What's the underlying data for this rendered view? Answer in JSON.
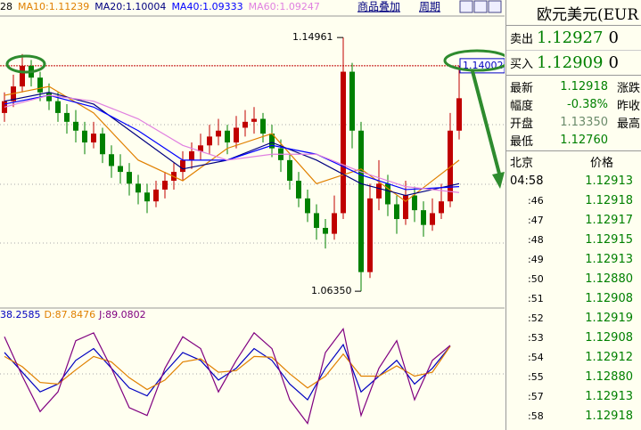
{
  "toolbar": {
    "buttons": [
      "商品叠加",
      "周期"
    ]
  },
  "chart_data": {
    "type": "candlestick",
    "legend": [
      {
        "text": "28",
        "color": "#000000"
      },
      {
        "text": "MA10:1.11239",
        "color": "#e08000"
      },
      {
        "text": "MA20:1.10004",
        "color": "#000080"
      },
      {
        "text": "MA40:1.09333",
        "color": "#0000ff"
      },
      {
        "text": "MA60:1.09247",
        "color": "#e080e0"
      }
    ],
    "ylim": [
      1.0581,
      1.1563
    ],
    "up_color": "#c00000",
    "down_color": "#008000",
    "candles": [
      [
        1.124,
        1.131,
        1.121,
        1.128
      ],
      [
        1.128,
        1.137,
        1.126,
        1.133
      ],
      [
        1.133,
        1.144,
        1.131,
        1.14
      ],
      [
        1.14,
        1.142,
        1.133,
        1.136
      ],
      [
        1.136,
        1.138,
        1.128,
        1.131
      ],
      [
        1.131,
        1.134,
        1.125,
        1.128
      ],
      [
        1.128,
        1.131,
        1.121,
        1.124
      ],
      [
        1.124,
        1.127,
        1.117,
        1.121
      ],
      [
        1.121,
        1.125,
        1.114,
        1.118
      ],
      [
        1.118,
        1.121,
        1.11,
        1.114
      ],
      [
        1.114,
        1.121,
        1.112,
        1.117
      ],
      [
        1.117,
        1.119,
        1.107,
        1.11
      ],
      [
        1.11,
        1.113,
        1.102,
        1.106
      ],
      [
        1.106,
        1.11,
        1.1,
        1.104
      ],
      [
        1.104,
        1.107,
        1.096,
        1.1
      ],
      [
        1.1,
        1.103,
        1.093,
        1.097
      ],
      [
        1.097,
        1.1,
        1.09,
        1.094
      ],
      [
        1.094,
        1.101,
        1.092,
        1.098
      ],
      [
        1.098,
        1.104,
        1.095,
        1.101
      ],
      [
        1.101,
        1.107,
        1.098,
        1.104
      ],
      [
        1.104,
        1.111,
        1.101,
        1.108
      ],
      [
        1.108,
        1.114,
        1.105,
        1.111
      ],
      [
        1.111,
        1.117,
        1.108,
        1.113
      ],
      [
        1.113,
        1.12,
        1.11,
        1.116
      ],
      [
        1.116,
        1.122,
        1.113,
        1.118
      ],
      [
        1.118,
        1.12,
        1.11,
        1.114
      ],
      [
        1.114,
        1.123,
        1.112,
        1.119
      ],
      [
        1.119,
        1.125,
        1.116,
        1.121
      ],
      [
        1.121,
        1.126,
        1.117,
        1.122
      ],
      [
        1.122,
        1.124,
        1.114,
        1.117
      ],
      [
        1.117,
        1.12,
        1.109,
        1.112
      ],
      [
        1.112,
        1.115,
        1.104,
        1.108
      ],
      [
        1.108,
        1.11,
        1.098,
        1.101
      ],
      [
        1.101,
        1.104,
        1.092,
        1.095
      ],
      [
        1.095,
        1.098,
        1.087,
        1.09
      ],
      [
        1.09,
        1.093,
        1.081,
        1.085
      ],
      [
        1.085,
        1.088,
        1.078,
        1.083
      ],
      [
        1.083,
        1.096,
        1.081,
        1.09
      ],
      [
        1.09,
        1.14961,
        1.088,
        1.138
      ],
      [
        1.138,
        1.141,
        1.112,
        1.118
      ],
      [
        1.118,
        1.121,
        1.0635,
        1.07
      ],
      [
        1.07,
        1.1,
        1.068,
        1.095
      ],
      [
        1.095,
        1.108,
        1.091,
        1.1
      ],
      [
        1.1,
        1.103,
        1.089,
        1.093
      ],
      [
        1.093,
        1.096,
        1.083,
        1.088
      ],
      [
        1.088,
        1.101,
        1.086,
        1.096
      ],
      [
        1.096,
        1.099,
        1.087,
        1.091
      ],
      [
        1.091,
        1.094,
        1.082,
        1.086
      ],
      [
        1.086,
        1.095,
        1.084,
        1.09
      ],
      [
        1.09,
        1.1,
        1.088,
        1.094
      ],
      [
        1.094,
        1.124,
        1.092,
        1.118
      ],
      [
        1.118,
        1.14,
        1.115,
        1.129
      ]
    ],
    "ma_lines": [
      {
        "color": "#e08000",
        "x": [
          0,
          5,
          10,
          15,
          20,
          25,
          30,
          35,
          40,
          45,
          51
        ],
        "values": [
          1.13,
          1.133,
          1.124,
          1.108,
          1.101,
          1.112,
          1.117,
          1.1,
          1.105,
          1.094,
          1.108
        ]
      },
      {
        "color": "#000080",
        "x": [
          0,
          5,
          10,
          15,
          20,
          25,
          30,
          35,
          40,
          45,
          51
        ],
        "values": [
          1.128,
          1.131,
          1.127,
          1.116,
          1.105,
          1.108,
          1.114,
          1.108,
          1.1,
          1.096,
          1.1
        ]
      },
      {
        "color": "#0000ff",
        "x": [
          0,
          5,
          10,
          15,
          20,
          25,
          30,
          35,
          40,
          45,
          51
        ],
        "values": [
          1.127,
          1.13,
          1.126,
          1.118,
          1.108,
          1.108,
          1.113,
          1.11,
          1.103,
          1.098,
          1.099
        ]
      },
      {
        "color": "#e080e0",
        "x": [
          0,
          5,
          10,
          15,
          20,
          25,
          30,
          35,
          40,
          45,
          51
        ],
        "values": [
          1.126,
          1.13,
          1.128,
          1.122,
          1.113,
          1.108,
          1.11,
          1.11,
          1.104,
          1.099,
          1.097
        ]
      }
    ],
    "high_label": {
      "value": 1.14961,
      "label": "1.14961"
    },
    "low_label": {
      "value": 1.0635,
      "label": "1.06350"
    },
    "current_line": {
      "value": 1.14002,
      "label": "1.14002",
      "color": "#c00000"
    },
    "indicator": {
      "legend": [
        {
          "text": "38.2585",
          "color": "#0000c0"
        },
        {
          "text": "D:87.8476",
          "color": "#e08000"
        },
        {
          "text": "J:89.0802",
          "color": "#800080"
        }
      ],
      "ylim": [
        -15,
        115
      ],
      "x": [
        0,
        2,
        4,
        6,
        8,
        10,
        12,
        14,
        16,
        18,
        20,
        22,
        24,
        26,
        28,
        30,
        32,
        34,
        36,
        38,
        40,
        42,
        44,
        46,
        48,
        50
      ],
      "series": [
        {
          "color": "#0000c0",
          "values": [
            80,
            55,
            30,
            40,
            70,
            85,
            60,
            35,
            25,
            55,
            80,
            70,
            45,
            60,
            85,
            70,
            40,
            20,
            60,
            90,
            30,
            50,
            70,
            40,
            60,
            88
          ]
        },
        {
          "color": "#e08000",
          "values": [
            75,
            62,
            42,
            40,
            58,
            75,
            68,
            48,
            33,
            45,
            68,
            72,
            55,
            57,
            75,
            74,
            53,
            35,
            50,
            78,
            50,
            50,
            63,
            50,
            55,
            88
          ]
        },
        {
          "color": "#800080",
          "values": [
            100,
            50,
            5,
            30,
            95,
            105,
            60,
            10,
            0,
            60,
            100,
            85,
            30,
            70,
            105,
            85,
            20,
            -10,
            80,
            110,
            0,
            60,
            95,
            20,
            70,
            89
          ]
        }
      ]
    }
  },
  "quote": {
    "title": "欧元美元(EUR",
    "sell": {
      "label": "卖出",
      "price": "1.12927",
      "qty": "0"
    },
    "buy": {
      "label": "买入",
      "price": "1.12909",
      "qty": "0"
    },
    "stats": [
      [
        "最新",
        "1.12918",
        "涨跌"
      ],
      [
        "幅度",
        "-0.38%",
        "昨收"
      ],
      [
        "开盘",
        "1.13350",
        "最高"
      ],
      [
        "最低",
        "1.12760"
      ]
    ],
    "ticks_header": [
      "北京",
      "价格"
    ],
    "ticks": [
      [
        "04:58",
        "1.12913"
      ],
      [
        ":46",
        "1.12918"
      ],
      [
        ":47",
        "1.12917"
      ],
      [
        ":48",
        "1.12915"
      ],
      [
        ":49",
        "1.12913"
      ],
      [
        ":50",
        "1.12880"
      ],
      [
        ":51",
        "1.12908"
      ],
      [
        ":52",
        "1.12919"
      ],
      [
        ":53",
        "1.12908"
      ],
      [
        ":54",
        "1.12912"
      ],
      [
        ":55",
        "1.12880"
      ],
      [
        ":57",
        "1.12913"
      ],
      [
        ":58",
        "1.12918"
      ]
    ]
  }
}
